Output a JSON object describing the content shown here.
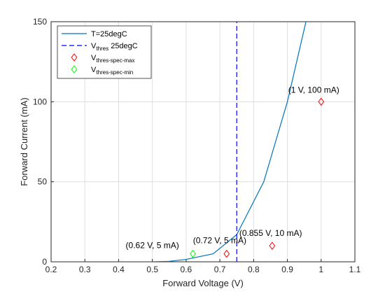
{
  "chart_data": {
    "type": "line",
    "xlabel": "Forward Voltage (V)",
    "ylabel": "Forward Current (mA)",
    "xlim": [
      0.2,
      1.1
    ],
    "ylim": [
      0,
      150
    ],
    "xticks": [
      0.2,
      0.3,
      0.4,
      0.5,
      0.6,
      0.7,
      0.8,
      0.9,
      1,
      1.1
    ],
    "yticks": [
      0,
      50,
      100,
      150
    ],
    "grid": true,
    "legend": "upper-left",
    "series": [
      {
        "name": "T=25degC",
        "kind": "line",
        "color": "#0072bd",
        "x": [
          0.2,
          0.5,
          0.55,
          0.6,
          0.68,
          0.75,
          0.83,
          0.9,
          0.955
        ],
        "values": [
          0,
          0,
          0.3,
          1.5,
          5,
          17,
          50,
          100,
          150
        ]
      },
      {
        "name": "V",
        "name_sub": "thres",
        "name_suffix": " 25degC",
        "kind": "dashed",
        "color": "#0000ff",
        "x": [
          0.75,
          0.75
        ],
        "values": [
          0,
          150
        ]
      },
      {
        "name": "V",
        "name_sub": "thres-spec-max",
        "kind": "diamond",
        "color": "#ff0000",
        "x": [
          0.72,
          0.855,
          1
        ],
        "values": [
          5,
          10,
          100
        ]
      },
      {
        "name": "V",
        "name_sub": "thres-spec-min",
        "kind": "diamond",
        "color": "#00ff00",
        "x": [
          0.62
        ],
        "values": [
          5
        ]
      }
    ],
    "annotations": [
      "(0.72 V, 5 mA)",
      "(0.855 V, 10 mA)",
      "(1 V, 100 mA)",
      "(0.62 V, 5 mA)"
    ]
  }
}
